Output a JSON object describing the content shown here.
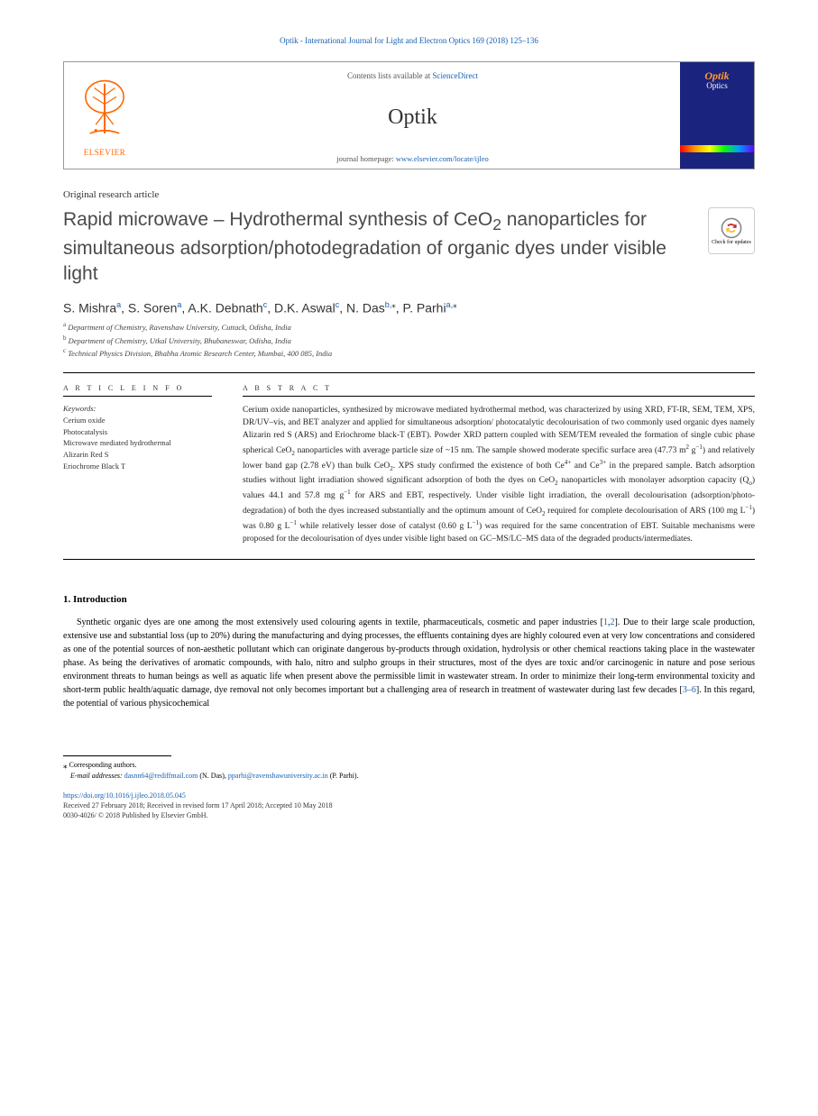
{
  "journal_header_line": "Optik - International Journal for Light and Electron Optics 169 (2018) 125–136",
  "header": {
    "contents_prefix": "Contents lists available at ",
    "contents_link": "ScienceDirect",
    "journal_name": "Optik",
    "homepage_prefix": "journal homepage: ",
    "homepage_url": "www.elsevier.com/locate/ijleo",
    "elsevier_label": "ELSEVIER",
    "cover_title": "Optik",
    "cover_sub": "Optics"
  },
  "article_type": "Original research article",
  "title_parts": {
    "pre": "Rapid microwave – Hydrothermal synthesis of CeO",
    "sub": "2",
    "post": " nanoparticles for simultaneous adsorption/photodegradation of organic dyes under visible light"
  },
  "updates_badge": "Check for updates",
  "authors": [
    {
      "name": "S. Mishra",
      "aff": "a"
    },
    {
      "name": "S. Soren",
      "aff": "a"
    },
    {
      "name": "A.K. Debnath",
      "aff": "c"
    },
    {
      "name": "D.K. Aswal",
      "aff": "c"
    },
    {
      "name": "N. Das",
      "aff": "b,",
      "star": "⁎"
    },
    {
      "name": "P. Parhi",
      "aff": "a,",
      "star": "⁎"
    }
  ],
  "affiliations": [
    {
      "key": "a",
      "text": "Department of Chemistry, Ravenshaw University, Cuttack, Odisha, India"
    },
    {
      "key": "b",
      "text": "Department of Chemistry, Utkal University, Bhubaneswar, Odisha, India"
    },
    {
      "key": "c",
      "text": "Technical Physics Division, Bhabha Atomic Research Center, Mumbai, 400 085, India"
    }
  ],
  "article_info_label": "A R T I C L E  I N F O",
  "abstract_label": "A B S T R A C T",
  "keywords_label": "Keywords:",
  "keywords": [
    "Cerium oxide",
    "Photocatalysis",
    "Microwave mediated hydrothermal",
    "Alizarin Red S",
    "Eriochrome Black T"
  ],
  "abstract_html": "Cerium oxide nanoparticles, synthesized by microwave mediated hydrothermal method, was characterized by using XRD, FT-IR, SEM, TEM, XPS, DR/UV–vis, and BET analyzer and applied for simultaneous adsorption/ photocatalytic decolourisation of two commonly used organic dyes namely Alizarin red S (ARS) and Eriochrome black-T (EBT). Powder XRD pattern coupled with SEM/TEM revealed the formation of single cubic phase spherical CeO<sub>2</sub> nanoparticles with average particle size of ~15 nm. The sample showed moderate specific surface area (47.73 m<sup>2</sup> g<sup>−1</sup>) and relatively lower band gap (2.78 eV) than bulk CeO<sub>2</sub>. XPS study confirmed the existence of both Ce<sup>4+</sup> and Ce<sup>3+</sup> in the prepared sample. Batch adsorption studies without light irradiation showed significant adsorption of both the dyes on CeO<sub>2</sub> nanoparticles with monolayer adsorption capacity (Q<sub>o</sub>) values 44.1 and 57.8 mg g<sup>−1</sup> for ARS and EBT, respectively. Under visible light irradiation, the overall decolourisation (adsorption/photo-degradation) of both the dyes increased substantially and the optimum amount of CeO<sub>2</sub> required for complete decolourisation of ARS (100 mg L<sup>−1</sup>) was 0.80 g L<sup>−1</sup> while relatively lesser dose of catalyst (0.60 g L<sup>−1</sup>) was required for the same concentration of EBT. Suitable mechanisms were proposed for the decolourisation of dyes under visible light based on GC–MS/LC–MS data of the degraded products/intermediates.",
  "section1_heading": "1. Introduction",
  "body_html": "Synthetic organic dyes are one among the most extensively used colouring agents in textile, pharmaceuticals, cosmetic and paper industries [<a href='#'>1</a>,<a href='#'>2</a>]. Due to their large scale production, extensive use and substantial loss (up to 20%) during the manufacturing and dying processes, the effluents containing dyes are highly coloured even at very low concentrations and considered as one of the potential sources of non-aesthetic pollutant which can originate dangerous by-products through oxidation, hydrolysis or other chemical reactions taking place in the wastewater phase. As being the derivatives of aromatic compounds, with halo, nitro and sulpho groups in their structures, most of the dyes are toxic and/or carcinogenic in nature and pose serious environment threats to human beings as well as aquatic life when present above the permissible limit in wastewater stream. In order to minimize their long-term environmental toxicity and short-term public health/aquatic damage, dye removal not only becomes important but a challenging area of research in treatment of wastewater during last few decades [<a href='#'>3–6</a>]. In this regard, the potential of various physicochemical",
  "footnotes": {
    "corr_label": "Corresponding authors.",
    "email_label": "E-mail addresses:",
    "emails": [
      {
        "addr": "dasnn64@rediffmail.com",
        "who": "(N. Das)"
      },
      {
        "addr": "pparhi@ravenshawuniversity.ac.in",
        "who": "(P. Parhi)"
      }
    ]
  },
  "footer": {
    "doi": "https://doi.org/10.1016/j.ijleo.2018.05.045",
    "received": "Received 27 February 2018; Received in revised form 17 April 2018; Accepted 10 May 2018",
    "issn": "0030-4026/ © 2018 Published by Elsevier GmbH."
  }
}
